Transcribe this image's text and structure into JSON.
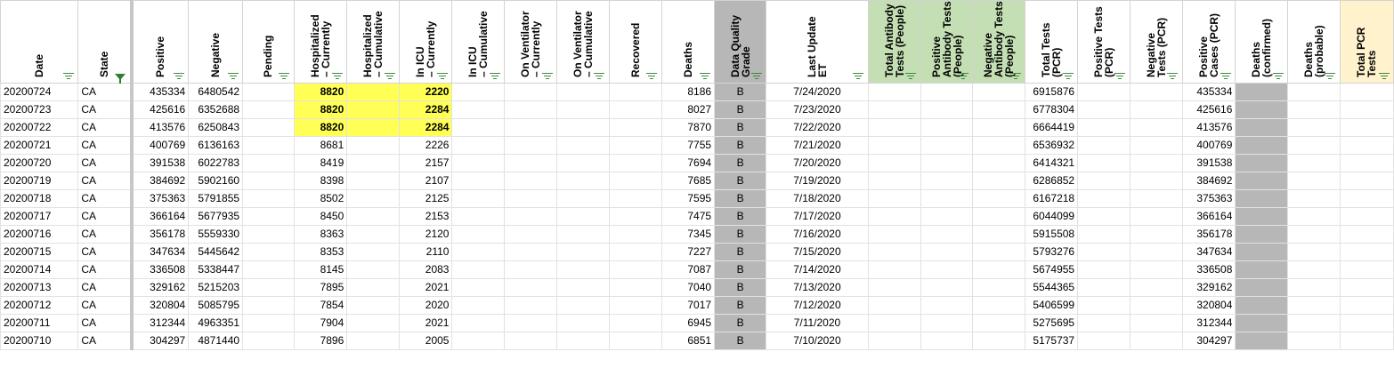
{
  "columns": [
    {
      "key": "date",
      "label": "Date",
      "width": 87,
      "align": "txt"
    },
    {
      "key": "state",
      "label": "State",
      "width": 58,
      "align": "txt",
      "filter": "funnel",
      "frozen": true
    },
    {
      "key": "positive",
      "label": "Positive",
      "width": 62,
      "align": "num"
    },
    {
      "key": "negative",
      "label": "Negative",
      "width": 60,
      "align": "num"
    },
    {
      "key": "pending",
      "label": "Pending",
      "width": 58,
      "align": "num"
    },
    {
      "key": "hosp_cur",
      "label": "Hospitalized\n– Currently",
      "width": 59,
      "align": "num"
    },
    {
      "key": "hosp_cum",
      "label": "Hospitalized\n– Cumulative",
      "width": 59,
      "align": "num"
    },
    {
      "key": "icu_cur",
      "label": "In ICU\n– Currently",
      "width": 59,
      "align": "num"
    },
    {
      "key": "icu_cum",
      "label": "In ICU\n– Cumulative",
      "width": 59,
      "align": "num"
    },
    {
      "key": "vent_cur",
      "label": "On Ventilator\n– Currently",
      "width": 59,
      "align": "num"
    },
    {
      "key": "vent_cum",
      "label": "On Ventilator\n– Cumulative",
      "width": 59,
      "align": "num"
    },
    {
      "key": "recovered",
      "label": "Recovered",
      "width": 59,
      "align": "num"
    },
    {
      "key": "deaths",
      "label": "Deaths",
      "width": 59,
      "align": "num"
    },
    {
      "key": "grade",
      "label": "Data Quality\nGrade",
      "width": 58,
      "align": "ctr",
      "bg": "grey"
    },
    {
      "key": "last_update",
      "label": "Last Update\nET",
      "width": 115,
      "align": "ctr"
    },
    {
      "key": "ab_total",
      "label": "Total Antibody\nTests (People)",
      "width": 59,
      "align": "num",
      "hbg": "green"
    },
    {
      "key": "ab_pos",
      "label": "Positive\nAntibody Tests\n(People)",
      "width": 59,
      "align": "num",
      "hbg": "green"
    },
    {
      "key": "ab_neg",
      "label": "Negative\nAntibody Tests\n(People)",
      "width": 59,
      "align": "num",
      "hbg": "green"
    },
    {
      "key": "tt_pcr",
      "label": "Total Tests\n(PCR)",
      "width": 58,
      "align": "num"
    },
    {
      "key": "pt_pcr",
      "label": "Positive Tests\n(PCR)",
      "width": 59,
      "align": "num"
    },
    {
      "key": "nt_pcr",
      "label": "Negative\nTests (PCR)",
      "width": 59,
      "align": "num"
    },
    {
      "key": "pc_pcr",
      "label": "Positive\nCases (PCR)",
      "width": 59,
      "align": "num"
    },
    {
      "key": "d_conf",
      "label": "Deaths\n(confirmed)",
      "width": 59,
      "align": "num",
      "bg": "grey",
      "hbg": "plain"
    },
    {
      "key": "d_prob",
      "label": "Deaths\n(probable)",
      "width": 59,
      "align": "num"
    },
    {
      "key": "total_pcr",
      "label": "Total PCR\nTests",
      "width": 60,
      "align": "num",
      "hbg": "yellow"
    }
  ],
  "rows": [
    {
      "date": "20200724",
      "state": "CA",
      "positive": "435334",
      "negative": "6480542",
      "pending": "",
      "hosp_cur": "8820",
      "hosp_cum": "",
      "icu_cur": "2220",
      "icu_cum": "",
      "vent_cur": "",
      "vent_cum": "",
      "recovered": "",
      "deaths": "8186",
      "grade": "B",
      "last_update": "7/24/2020",
      "ab_total": "",
      "ab_pos": "",
      "ab_neg": "",
      "tt_pcr": "6915876",
      "pt_pcr": "",
      "nt_pcr": "",
      "pc_pcr": "435334",
      "d_conf": "",
      "d_prob": "",
      "total_pcr": "",
      "hl": true
    },
    {
      "date": "20200723",
      "state": "CA",
      "positive": "425616",
      "negative": "6352688",
      "pending": "",
      "hosp_cur": "8820",
      "hosp_cum": "",
      "icu_cur": "2284",
      "icu_cum": "",
      "vent_cur": "",
      "vent_cum": "",
      "recovered": "",
      "deaths": "8027",
      "grade": "B",
      "last_update": "7/23/2020",
      "ab_total": "",
      "ab_pos": "",
      "ab_neg": "",
      "tt_pcr": "6778304",
      "pt_pcr": "",
      "nt_pcr": "",
      "pc_pcr": "425616",
      "d_conf": "",
      "d_prob": "",
      "total_pcr": "",
      "hl": true
    },
    {
      "date": "20200722",
      "state": "CA",
      "positive": "413576",
      "negative": "6250843",
      "pending": "",
      "hosp_cur": "8820",
      "hosp_cum": "",
      "icu_cur": "2284",
      "icu_cum": "",
      "vent_cur": "",
      "vent_cum": "",
      "recovered": "",
      "deaths": "7870",
      "grade": "B",
      "last_update": "7/22/2020",
      "ab_total": "",
      "ab_pos": "",
      "ab_neg": "",
      "tt_pcr": "6664419",
      "pt_pcr": "",
      "nt_pcr": "",
      "pc_pcr": "413576",
      "d_conf": "",
      "d_prob": "",
      "total_pcr": "",
      "hl": true
    },
    {
      "date": "20200721",
      "state": "CA",
      "positive": "400769",
      "negative": "6136163",
      "pending": "",
      "hosp_cur": "8681",
      "hosp_cum": "",
      "icu_cur": "2226",
      "icu_cum": "",
      "vent_cur": "",
      "vent_cum": "",
      "recovered": "",
      "deaths": "7755",
      "grade": "B",
      "last_update": "7/21/2020",
      "ab_total": "",
      "ab_pos": "",
      "ab_neg": "",
      "tt_pcr": "6536932",
      "pt_pcr": "",
      "nt_pcr": "",
      "pc_pcr": "400769",
      "d_conf": "",
      "d_prob": "",
      "total_pcr": ""
    },
    {
      "date": "20200720",
      "state": "CA",
      "positive": "391538",
      "negative": "6022783",
      "pending": "",
      "hosp_cur": "8419",
      "hosp_cum": "",
      "icu_cur": "2157",
      "icu_cum": "",
      "vent_cur": "",
      "vent_cum": "",
      "recovered": "",
      "deaths": "7694",
      "grade": "B",
      "last_update": "7/20/2020",
      "ab_total": "",
      "ab_pos": "",
      "ab_neg": "",
      "tt_pcr": "6414321",
      "pt_pcr": "",
      "nt_pcr": "",
      "pc_pcr": "391538",
      "d_conf": "",
      "d_prob": "",
      "total_pcr": ""
    },
    {
      "date": "20200719",
      "state": "CA",
      "positive": "384692",
      "negative": "5902160",
      "pending": "",
      "hosp_cur": "8398",
      "hosp_cum": "",
      "icu_cur": "2107",
      "icu_cum": "",
      "vent_cur": "",
      "vent_cum": "",
      "recovered": "",
      "deaths": "7685",
      "grade": "B",
      "last_update": "7/19/2020",
      "ab_total": "",
      "ab_pos": "",
      "ab_neg": "",
      "tt_pcr": "6286852",
      "pt_pcr": "",
      "nt_pcr": "",
      "pc_pcr": "384692",
      "d_conf": "",
      "d_prob": "",
      "total_pcr": ""
    },
    {
      "date": "20200718",
      "state": "CA",
      "positive": "375363",
      "negative": "5791855",
      "pending": "",
      "hosp_cur": "8502",
      "hosp_cum": "",
      "icu_cur": "2125",
      "icu_cum": "",
      "vent_cur": "",
      "vent_cum": "",
      "recovered": "",
      "deaths": "7595",
      "grade": "B",
      "last_update": "7/18/2020",
      "ab_total": "",
      "ab_pos": "",
      "ab_neg": "",
      "tt_pcr": "6167218",
      "pt_pcr": "",
      "nt_pcr": "",
      "pc_pcr": "375363",
      "d_conf": "",
      "d_prob": "",
      "total_pcr": ""
    },
    {
      "date": "20200717",
      "state": "CA",
      "positive": "366164",
      "negative": "5677935",
      "pending": "",
      "hosp_cur": "8450",
      "hosp_cum": "",
      "icu_cur": "2153",
      "icu_cum": "",
      "vent_cur": "",
      "vent_cum": "",
      "recovered": "",
      "deaths": "7475",
      "grade": "B",
      "last_update": "7/17/2020",
      "ab_total": "",
      "ab_pos": "",
      "ab_neg": "",
      "tt_pcr": "6044099",
      "pt_pcr": "",
      "nt_pcr": "",
      "pc_pcr": "366164",
      "d_conf": "",
      "d_prob": "",
      "total_pcr": ""
    },
    {
      "date": "20200716",
      "state": "CA",
      "positive": "356178",
      "negative": "5559330",
      "pending": "",
      "hosp_cur": "8363",
      "hosp_cum": "",
      "icu_cur": "2120",
      "icu_cum": "",
      "vent_cur": "",
      "vent_cum": "",
      "recovered": "",
      "deaths": "7345",
      "grade": "B",
      "last_update": "7/16/2020",
      "ab_total": "",
      "ab_pos": "",
      "ab_neg": "",
      "tt_pcr": "5915508",
      "pt_pcr": "",
      "nt_pcr": "",
      "pc_pcr": "356178",
      "d_conf": "",
      "d_prob": "",
      "total_pcr": ""
    },
    {
      "date": "20200715",
      "state": "CA",
      "positive": "347634",
      "negative": "5445642",
      "pending": "",
      "hosp_cur": "8353",
      "hosp_cum": "",
      "icu_cur": "2110",
      "icu_cum": "",
      "vent_cur": "",
      "vent_cum": "",
      "recovered": "",
      "deaths": "7227",
      "grade": "B",
      "last_update": "7/15/2020",
      "ab_total": "",
      "ab_pos": "",
      "ab_neg": "",
      "tt_pcr": "5793276",
      "pt_pcr": "",
      "nt_pcr": "",
      "pc_pcr": "347634",
      "d_conf": "",
      "d_prob": "",
      "total_pcr": ""
    },
    {
      "date": "20200714",
      "state": "CA",
      "positive": "336508",
      "negative": "5338447",
      "pending": "",
      "hosp_cur": "8145",
      "hosp_cum": "",
      "icu_cur": "2083",
      "icu_cum": "",
      "vent_cur": "",
      "vent_cum": "",
      "recovered": "",
      "deaths": "7087",
      "grade": "B",
      "last_update": "7/14/2020",
      "ab_total": "",
      "ab_pos": "",
      "ab_neg": "",
      "tt_pcr": "5674955",
      "pt_pcr": "",
      "nt_pcr": "",
      "pc_pcr": "336508",
      "d_conf": "",
      "d_prob": "",
      "total_pcr": ""
    },
    {
      "date": "20200713",
      "state": "CA",
      "positive": "329162",
      "negative": "5215203",
      "pending": "",
      "hosp_cur": "7895",
      "hosp_cum": "",
      "icu_cur": "2021",
      "icu_cum": "",
      "vent_cur": "",
      "vent_cum": "",
      "recovered": "",
      "deaths": "7040",
      "grade": "B",
      "last_update": "7/13/2020",
      "ab_total": "",
      "ab_pos": "",
      "ab_neg": "",
      "tt_pcr": "5544365",
      "pt_pcr": "",
      "nt_pcr": "",
      "pc_pcr": "329162",
      "d_conf": "",
      "d_prob": "",
      "total_pcr": ""
    },
    {
      "date": "20200712",
      "state": "CA",
      "positive": "320804",
      "negative": "5085795",
      "pending": "",
      "hosp_cur": "7854",
      "hosp_cum": "",
      "icu_cur": "2020",
      "icu_cum": "",
      "vent_cur": "",
      "vent_cum": "",
      "recovered": "",
      "deaths": "7017",
      "grade": "B",
      "last_update": "7/12/2020",
      "ab_total": "",
      "ab_pos": "",
      "ab_neg": "",
      "tt_pcr": "5406599",
      "pt_pcr": "",
      "nt_pcr": "",
      "pc_pcr": "320804",
      "d_conf": "",
      "d_prob": "",
      "total_pcr": ""
    },
    {
      "date": "20200711",
      "state": "CA",
      "positive": "312344",
      "negative": "4963351",
      "pending": "",
      "hosp_cur": "7904",
      "hosp_cum": "",
      "icu_cur": "2021",
      "icu_cum": "",
      "vent_cur": "",
      "vent_cum": "",
      "recovered": "",
      "deaths": "6945",
      "grade": "B",
      "last_update": "7/11/2020",
      "ab_total": "",
      "ab_pos": "",
      "ab_neg": "",
      "tt_pcr": "5275695",
      "pt_pcr": "",
      "nt_pcr": "",
      "pc_pcr": "312344",
      "d_conf": "",
      "d_prob": "",
      "total_pcr": ""
    },
    {
      "date": "20200710",
      "state": "CA",
      "positive": "304297",
      "negative": "4871440",
      "pending": "",
      "hosp_cur": "7896",
      "hosp_cum": "",
      "icu_cur": "2005",
      "icu_cum": "",
      "vent_cur": "",
      "vent_cum": "",
      "recovered": "",
      "deaths": "6851",
      "grade": "B",
      "last_update": "7/10/2020",
      "ab_total": "",
      "ab_pos": "",
      "ab_neg": "",
      "tt_pcr": "5175737",
      "pt_pcr": "",
      "nt_pcr": "",
      "pc_pcr": "304297",
      "d_conf": "",
      "d_prob": "",
      "total_pcr": ""
    }
  ],
  "highlight_keys": [
    "hosp_cur",
    "hosp_cum",
    "icu_cur"
  ],
  "colors": {
    "highlight": "#ffff55",
    "grade_grey": "#b7b7b7",
    "antibody_header_green": "#c5dfb4",
    "pcr_header_yellow": "#fff2cc",
    "filter_green": "#3b8a3b"
  },
  "icons": {
    "column_filter": "filter-lines-icon",
    "state_filter_active": "funnel-icon"
  }
}
